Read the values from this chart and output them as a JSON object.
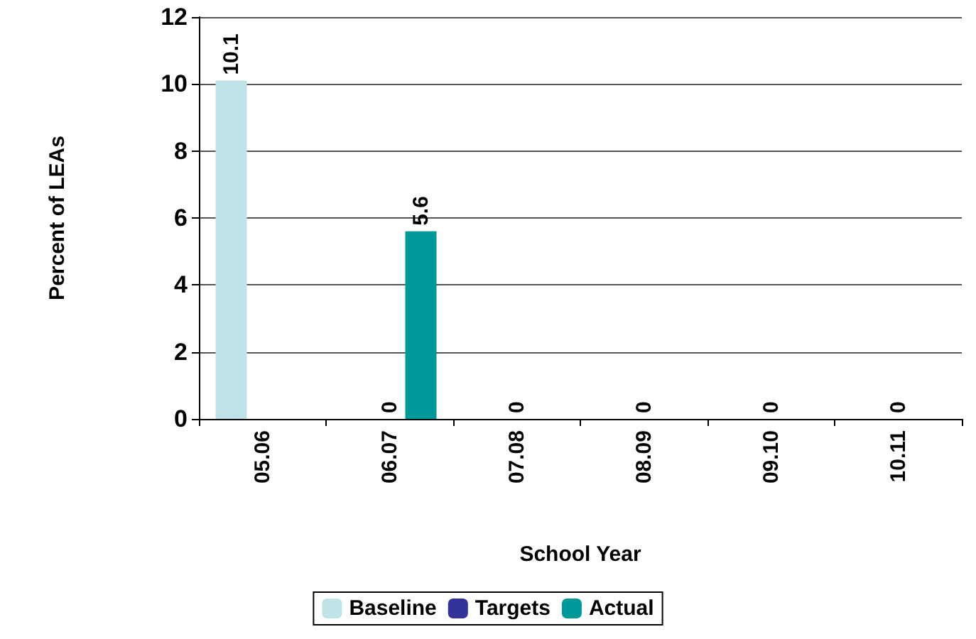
{
  "chart_data": {
    "type": "bar",
    "xlabel": "School Year",
    "ylabel": "Percent of LEAs",
    "categories": [
      "05.06",
      "06.07",
      "07.08",
      "08.09",
      "09.10",
      "10.11"
    ],
    "series": [
      {
        "name": "Baseline",
        "color": "#bfe3e6",
        "values": [
          10.1,
          null,
          null,
          null,
          null,
          null
        ],
        "value_labels": [
          "10.1",
          null,
          null,
          null,
          null,
          null
        ]
      },
      {
        "name": "Targets",
        "color": "#333399",
        "values": [
          null,
          0,
          0,
          0,
          0,
          0
        ],
        "value_labels": [
          null,
          "0",
          "0",
          "0",
          "0",
          "0"
        ]
      },
      {
        "name": "Actual",
        "color": "#009999",
        "values": [
          null,
          5.6,
          null,
          null,
          null,
          null
        ],
        "value_labels": [
          null,
          "5.6",
          null,
          null,
          null,
          null
        ]
      }
    ],
    "ylim": [
      0,
      12
    ],
    "yticks": [
      0,
      2,
      4,
      6,
      8,
      10,
      12
    ],
    "grid": "y",
    "legend": "bottom"
  }
}
